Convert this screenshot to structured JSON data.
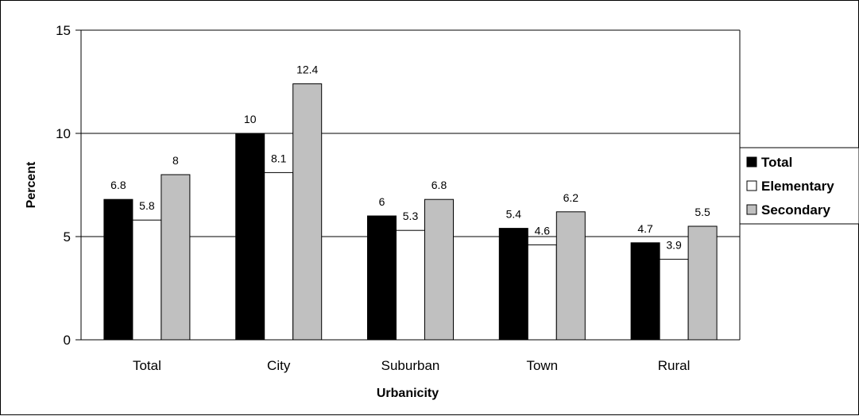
{
  "chart_data": {
    "type": "bar",
    "title": "",
    "xlabel": "Urbanicity",
    "ylabel": "Percent",
    "ylim": [
      0,
      15
    ],
    "yticks": [
      0,
      5,
      10,
      15
    ],
    "grid": true,
    "legend_position": "right",
    "categories": [
      "Total",
      "City",
      "Suburban",
      "Town",
      "Rural"
    ],
    "series": [
      {
        "name": "Total",
        "color": "#000000",
        "values": [
          6.8,
          10,
          6,
          5.4,
          4.7
        ],
        "labels": [
          "6.8",
          "10",
          "6",
          "5.4",
          "4.7"
        ]
      },
      {
        "name": "Elementary",
        "color": "#ffffff",
        "values": [
          5.8,
          8.1,
          5.3,
          4.6,
          3.9
        ],
        "labels": [
          "5.8",
          "8.1",
          "5.3",
          "4.6",
          "3.9"
        ]
      },
      {
        "name": "Secondary",
        "color": "#c0c0c0",
        "values": [
          8,
          12.4,
          6.8,
          6.2,
          5.5
        ],
        "labels": [
          "8",
          "12.4",
          "6.8",
          "6.2",
          "5.5"
        ]
      }
    ]
  }
}
